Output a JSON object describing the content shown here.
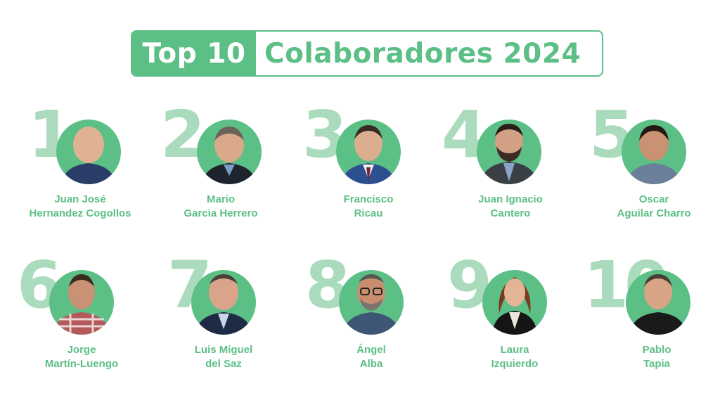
{
  "header": {
    "title_left": "Top 10",
    "title_right": "Colaboradores 2024"
  },
  "colors": {
    "accent": "#5cbf86",
    "rank_number": "#a9dbbc",
    "background": "#ffffff"
  },
  "collaborators": [
    {
      "rank": "1",
      "first_line": "Juan José",
      "second_line": "Hernandez Cogollos"
    },
    {
      "rank": "2",
      "first_line": "Mario",
      "second_line": "Garcia Herrero"
    },
    {
      "rank": "3",
      "first_line": "Francisco",
      "second_line": "Ricau"
    },
    {
      "rank": "4",
      "first_line": "Juan Ignacio",
      "second_line": "Cantero"
    },
    {
      "rank": "5",
      "first_line": "Oscar",
      "second_line": "Aguilar Charro"
    },
    {
      "rank": "6",
      "first_line": "Jorge",
      "second_line": "Martín-Luengo"
    },
    {
      "rank": "7",
      "first_line": "Luis Miguel",
      "second_line": "del Saz"
    },
    {
      "rank": "8",
      "first_line": "Ángel",
      "second_line": "Alba"
    },
    {
      "rank": "9",
      "first_line": "Laura",
      "second_line": "Izquierdo"
    },
    {
      "rank": "10",
      "first_line": "Pablo",
      "second_line": "Tapia"
    }
  ]
}
